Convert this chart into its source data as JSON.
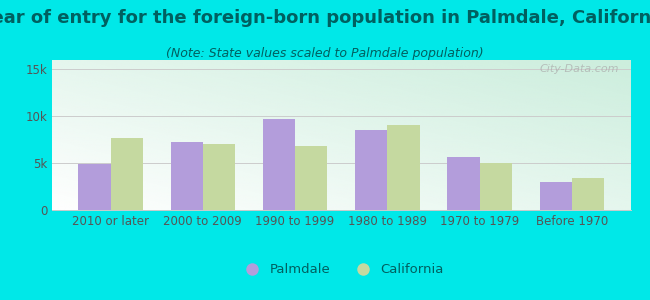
{
  "categories": [
    "2010 or later",
    "2000 to 2009",
    "1990 to 1999",
    "1980 to 1989",
    "1970 to 1979",
    "Before 1970"
  ],
  "palmdale_values": [
    4900,
    7300,
    9700,
    8500,
    5700,
    3000
  ],
  "california_values": [
    7700,
    7000,
    6800,
    9100,
    5000,
    3400
  ],
  "palmdale_color": "#b39ddb",
  "california_color": "#c5d9a0",
  "title": "Year of entry for the foreign-born population in Palmdale, California",
  "subtitle": "(Note: State values scaled to Palmdale population)",
  "ylim": [
    0,
    16000
  ],
  "yticks": [
    0,
    5000,
    10000,
    15000
  ],
  "ytick_labels": [
    "0",
    "5k",
    "10k",
    "15k"
  ],
  "background_color": "#00e8e8",
  "bar_width": 0.35,
  "legend_palmdale": "Palmdale",
  "legend_california": "California",
  "title_fontsize": 13,
  "subtitle_fontsize": 9,
  "tick_fontsize": 8.5,
  "legend_fontsize": 9.5,
  "title_color": "#006060",
  "subtitle_color": "#006060",
  "tick_color": "#555555",
  "grid_color": "#cccccc",
  "watermark": "City-Data.com",
  "plot_bg_colors": [
    "#cceedd",
    "#ffffff"
  ],
  "plot_bg_alpha": 0.5
}
